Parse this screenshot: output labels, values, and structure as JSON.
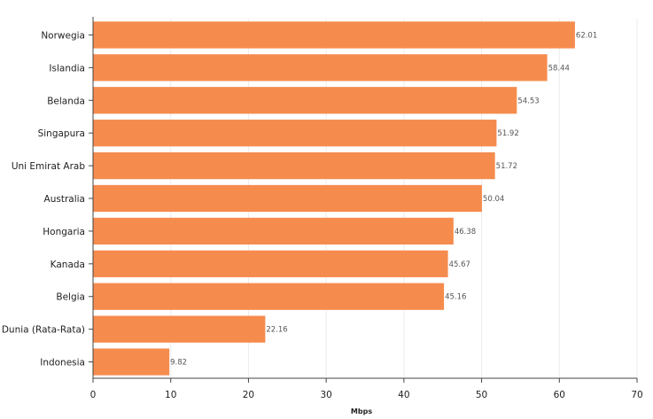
{
  "chart_data": {
    "type": "bar",
    "orientation": "horizontal",
    "categories": [
      "Norwegia",
      "Islandia",
      "Belanda",
      "Singapura",
      "Uni Emirat Arab",
      "Australia",
      "Hongaria",
      "Kanada",
      "Belgia",
      "Dunia (Rata-Rata)",
      "Indonesia"
    ],
    "values": [
      62.01,
      58.44,
      54.53,
      51.92,
      51.72,
      50.04,
      46.38,
      45.67,
      45.16,
      22.16,
      9.82
    ],
    "value_labels": [
      "62.01",
      "58.44",
      "54.53",
      "51.92",
      "51.72",
      "50.04",
      "46.38",
      "45.67",
      "45.16",
      "22.16",
      "9.82"
    ],
    "xlabel": "Mbps",
    "xlim": [
      0,
      70
    ],
    "xticks": [
      "0",
      "10",
      "20",
      "30",
      "40",
      "50",
      "60",
      "70"
    ],
    "grid": true,
    "bar_color": "#f58c4e",
    "grid_color": "#ececec",
    "axis_color": "#444444"
  }
}
